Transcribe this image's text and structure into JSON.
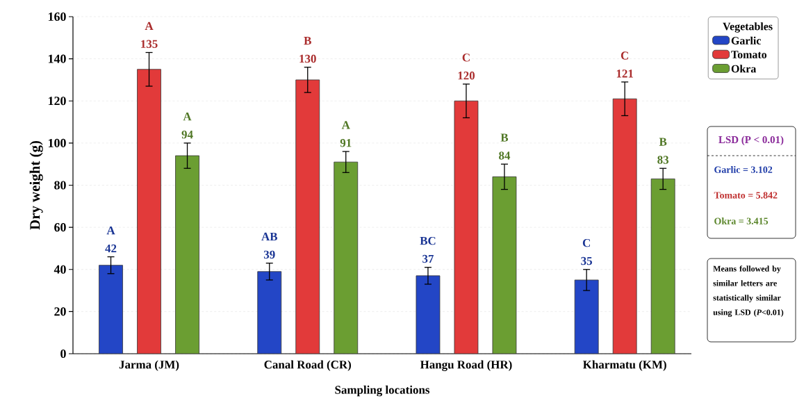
{
  "chart_data": {
    "type": "bar",
    "xlabel": "Sampling locations",
    "ylabel": "Dry weight (g)",
    "legend_title": "Vegetables",
    "categories": [
      "Jarma (JM)",
      "Canal Road (CR)",
      "Hangu Road (HR)",
      "Kharmatu (KM)"
    ],
    "series": [
      {
        "name": "Garlic",
        "color": "#2346c6",
        "values": [
          42,
          39,
          37,
          35
        ],
        "errors": [
          4,
          4,
          4,
          5
        ]
      },
      {
        "name": "Tomato",
        "color": "#e23a3a",
        "values": [
          135,
          130,
          120,
          121
        ],
        "errors": [
          8,
          6,
          8,
          8
        ]
      },
      {
        "name": "Okra",
        "color": "#6b9e32",
        "values": [
          94,
          91,
          84,
          83
        ],
        "errors": [
          6,
          5,
          6,
          5
        ]
      }
    ],
    "ylim": [
      0,
      160
    ],
    "yticks": [
      0,
      20,
      40,
      60,
      80,
      100,
      120,
      140,
      160
    ],
    "grid": "y",
    "legend": "right",
    "data_labels": true,
    "annotations": [
      "A",
      "AB",
      "BC",
      "C",
      "A",
      "B",
      "C",
      "C",
      "A",
      "A",
      "B",
      "B",
      "LSD (P < 0.01)",
      "Garlic = 3.102",
      "Tomato = 5.842",
      "Okra = 3.415",
      "Means followed by similar letters are statistically similar using LSD (*P*<0.01)"
    ]
  }
}
